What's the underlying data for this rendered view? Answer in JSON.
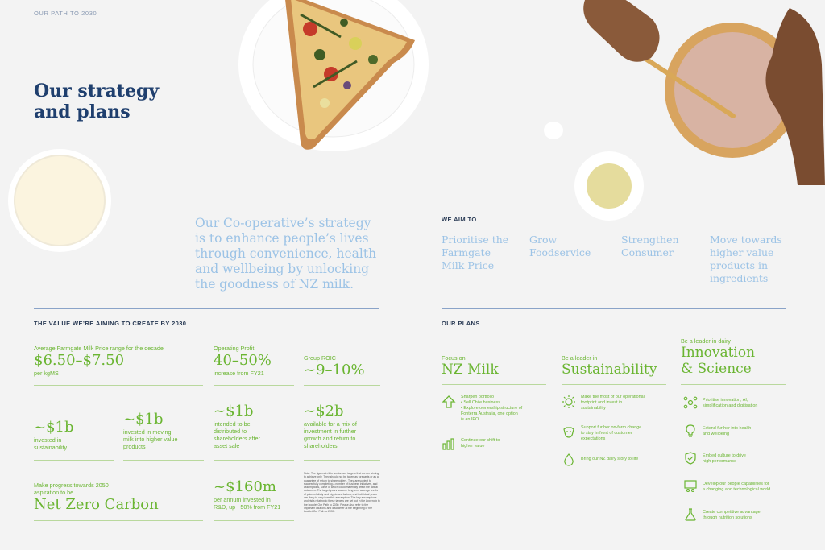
{
  "header": {
    "kicker": "OUR PATH TO 2030",
    "title_line1": "Our strategy",
    "title_line2": "and plans"
  },
  "lead": {
    "line1": "Our Co-operative’s strategy",
    "line2": "is to enhance people’s lives",
    "line3": "through convenience, health",
    "line4": "and wellbeing by unlocking",
    "line5": "the goodness of NZ milk."
  },
  "aims": {
    "label": "WE AIM TO",
    "items": [
      {
        "l1": "Prioritise the",
        "l2": "Farmgate",
        "l3": "Milk Price",
        "l4": ""
      },
      {
        "l1": "Grow",
        "l2": "Foodservice",
        "l3": "",
        "l4": ""
      },
      {
        "l1": "Strengthen",
        "l2": "Consumer",
        "l3": "",
        "l4": ""
      },
      {
        "l1": "Move towards",
        "l2": "higher value",
        "l3": "products in",
        "l4": "ingredients"
      }
    ]
  },
  "value": {
    "heading": "THE VALUE WE’RE AIMING TO CREATE BY 2030",
    "milk_price": {
      "label": "Average Farmgate Milk Price range for the decade",
      "value": "$6.50–$7.50",
      "sub": "per kgMS"
    },
    "op_profit": {
      "label": "Operating Profit",
      "value": "40–50%",
      "sub": "increase from FY21"
    },
    "roic": {
      "label": "Group ROIC",
      "value": "~9–10%"
    },
    "sustain": {
      "value": "~$1b",
      "sub1": "invested in",
      "sub2": "sustainability"
    },
    "milk_higher": {
      "value": "~$1b",
      "sub1": "invested in moving",
      "sub2": "milk into higher value",
      "sub3": "products"
    },
    "distributed": {
      "value": "~$1b",
      "sub1": "intended to be",
      "sub2": "distributed to",
      "sub3": "shareholders after",
      "sub4": "asset sale"
    },
    "invest": {
      "value": "~$2b",
      "sub1": "available for a mix of",
      "sub2": "investment in further",
      "sub3": "growth and return to",
      "sub4": "shareholders"
    },
    "carbon": {
      "label1": "Make progress towards 2050",
      "label2": "aspiration to be",
      "value": "Net Zero Carbon"
    },
    "rnd": {
      "value": "~$160m",
      "sub1": "per annum invested in",
      "sub2": "R&D, up ~50% from FY21"
    },
    "note": "Note: The figures in this section are targets that we are aiming to achieve only. They should not be taken as forecasts or as a guarantee of return to shareholders. They are subject to successfully completing a number of business initiatives, and assumptions, some of which could materially affect the actual outcomes. The target years assume long term average levels of price relativity and big picture factors, and individual years are likely to vary from this assumption. The key assumptions and risks relating to these targets are set out in the Appendix to the booklet Our Path to 2030. Please also refer to the important cautions and disclaimer at the beginning of the booklet Our Path to 2030."
  },
  "plans": {
    "heading": "OUR PLANS",
    "col1": {
      "label": "Focus on",
      "title": "NZ Milk",
      "items": [
        {
          "icon": "arrow-up-icon",
          "t1": "Sharpen portfolio",
          "t2": "• Sell Chile business",
          "t3": "• Explore ownership structure of",
          "t4": "  Fonterra Australia, one option",
          "t5": "  is an IPO"
        },
        {
          "icon": "bar-chart-icon",
          "t1": "Continue our shift to",
          "t2": "higher value"
        }
      ]
    },
    "col2": {
      "label": "Be a leader in",
      "title": "Sustainability",
      "items": [
        {
          "icon": "sun-icon",
          "t1": "Make the most of our operational",
          "t2": "footprint and invest in",
          "t3": "sustainability"
        },
        {
          "icon": "cow-icon",
          "t1": "Support further on-farm change",
          "t2": "to stay in front of customer",
          "t3": "expectations"
        },
        {
          "icon": "drop-icon",
          "t1": "Bring our NZ dairy story to life"
        }
      ]
    },
    "col3": {
      "label": "Be a leader in dairy",
      "title1": "Innovation",
      "title2": "& Science",
      "items": [
        {
          "icon": "molecule-icon",
          "t1": "Prioritise innovation, AI,",
          "t2": "simplification and digitisation"
        },
        {
          "icon": "lightbulb-icon",
          "t1": "Extend further into health",
          "t2": "and wellbeing"
        },
        {
          "icon": "shield-check-icon",
          "t1": "Embed culture to drive",
          "t2": "high performance"
        },
        {
          "icon": "people-screen-icon",
          "t1": "Develop our people capabilities for",
          "t2": "a changing and technological world"
        },
        {
          "icon": "flask-icon",
          "t1": "Create competitive advantage",
          "t2": "through nutrition solutions"
        }
      ]
    }
  },
  "colors": {
    "navy": "#1f3f6e",
    "light_blue": "#9cc3e6",
    "green": "#6ab531"
  }
}
